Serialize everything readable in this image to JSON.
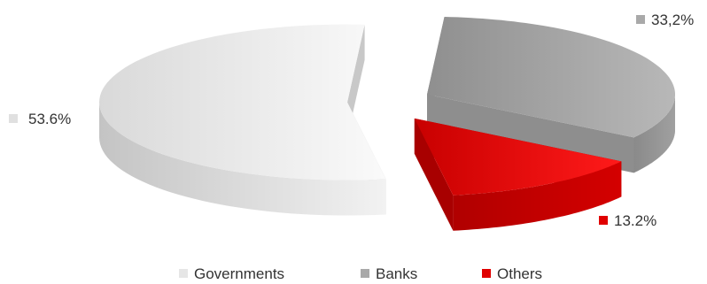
{
  "chart_data": {
    "type": "pie",
    "style": "3d-exploded",
    "slices": [
      {
        "name": "Governments",
        "value": 53.6,
        "label": "53.6%",
        "color": "#e6e6e6",
        "shade": "#c8c8c8"
      },
      {
        "name": "Banks",
        "value": 33.2,
        "label": "33,2%",
        "color": "#a9a9a9",
        "shade": "#8e8e8e"
      },
      {
        "name": "Others",
        "value": 13.2,
        "label": "13.2%",
        "color": "#e00000",
        "shade": "#a80000"
      }
    ],
    "legend": {
      "placement": "bottom",
      "items": [
        "Governments",
        "Banks",
        "Others"
      ]
    }
  }
}
